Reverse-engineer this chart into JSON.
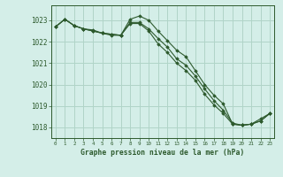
{
  "title": "Graphe pression niveau de la mer (hPa)",
  "bg_color": "#d4eee8",
  "grid_color": "#b0d4c8",
  "line_color": "#2d5a2d",
  "marker_color": "#2d5a2d",
  "xlim": [
    -0.5,
    23.5
  ],
  "ylim": [
    1017.5,
    1023.7
  ],
  "yticks": [
    1018,
    1019,
    1020,
    1021,
    1022,
    1023
  ],
  "xticks": [
    0,
    1,
    2,
    3,
    4,
    5,
    6,
    7,
    8,
    9,
    10,
    11,
    12,
    13,
    14,
    15,
    16,
    17,
    18,
    19,
    20,
    21,
    22,
    23
  ],
  "series": [
    [
      1022.7,
      1023.05,
      1022.75,
      1022.6,
      1022.55,
      1022.4,
      1022.35,
      1022.3,
      1023.05,
      1023.2,
      1023.0,
      1022.5,
      1022.05,
      1021.6,
      1021.3,
      1020.65,
      1020.0,
      1019.5,
      1019.1,
      1018.15,
      1018.1,
      1018.15,
      1018.4,
      1018.65
    ],
    [
      1022.7,
      1023.05,
      1022.75,
      1022.6,
      1022.5,
      1022.4,
      1022.35,
      1022.3,
      1022.9,
      1022.9,
      1022.6,
      1022.15,
      1021.75,
      1021.2,
      1020.9,
      1020.4,
      1019.8,
      1019.25,
      1018.8,
      1018.2,
      1018.1,
      1018.15,
      1018.3,
      1018.65
    ],
    [
      1022.7,
      1023.05,
      1022.75,
      1022.6,
      1022.5,
      1022.4,
      1022.3,
      1022.3,
      1022.85,
      1022.85,
      1022.5,
      1021.9,
      1021.5,
      1021.0,
      1020.65,
      1020.2,
      1019.55,
      1019.05,
      1018.65,
      1018.15,
      1018.1,
      1018.15,
      1018.3,
      1018.65
    ]
  ]
}
